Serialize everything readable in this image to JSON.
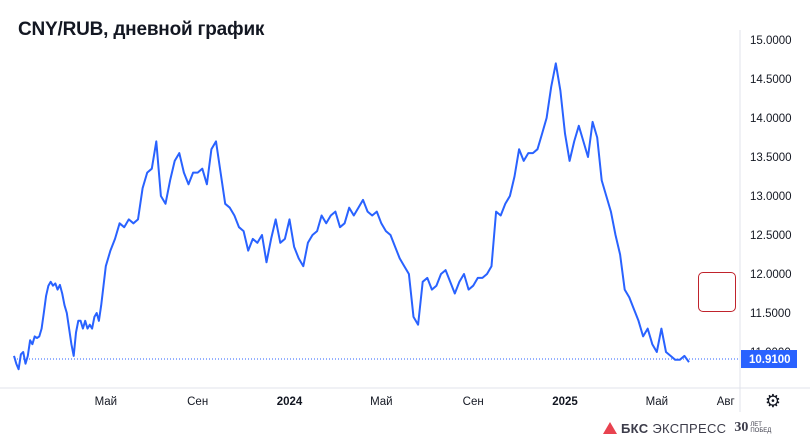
{
  "chart_data": {
    "type": "line",
    "title": "CNY/RUB, дневной график",
    "y_ticks": [
      "15.0000",
      "14.5000",
      "14.0000",
      "13.5000",
      "13.0000",
      "12.5000",
      "12.0000",
      "11.5000",
      "11.0000"
    ],
    "y_tick_values": [
      15.0,
      14.5,
      14.0,
      13.5,
      13.0,
      12.5,
      12.0,
      11.5,
      11.0
    ],
    "ylim": [
      10.75,
      15.0
    ],
    "x_ticks": [
      {
        "label": "Май",
        "bold": false
      },
      {
        "label": "Сен",
        "bold": false
      },
      {
        "label": "2024",
        "bold": true
      },
      {
        "label": "Май",
        "bold": false
      },
      {
        "label": "Сен",
        "bold": false
      },
      {
        "label": "2025",
        "bold": true
      },
      {
        "label": "Май",
        "bold": false
      },
      {
        "label": "Авг",
        "bold": false
      }
    ],
    "x_tick_positions": [
      4.0,
      8.0,
      12.0,
      16.0,
      20.0,
      24.0,
      28.0,
      31.0
    ],
    "xlim": [
      0.0,
      31.6
    ],
    "x_unit": "months from the start of January 2023 (Май 2023 = 4.0)",
    "last_value": "10.9100",
    "last_value_number": 10.91,
    "grid": false,
    "legend": "none",
    "series": [
      {
        "color": "#2962ff",
        "x": [
          0.0,
          0.1,
          0.2,
          0.3,
          0.4,
          0.5,
          0.6,
          0.7,
          0.8,
          0.9,
          1.0,
          1.1,
          1.2,
          1.3,
          1.4,
          1.5,
          1.6,
          1.7,
          1.8,
          1.9,
          2.0,
          2.1,
          2.2,
          2.3,
          2.4,
          2.5,
          2.6,
          2.7,
          2.8,
          2.9,
          3.0,
          3.1,
          3.2,
          3.3,
          3.4,
          3.5,
          3.6,
          3.7,
          3.8,
          3.9,
          4.0,
          4.2,
          4.4,
          4.6,
          4.8,
          5.0,
          5.2,
          5.4,
          5.6,
          5.8,
          6.0,
          6.2,
          6.4,
          6.6,
          6.8,
          7.0,
          7.2,
          7.4,
          7.6,
          7.8,
          8.0,
          8.2,
          8.4,
          8.6,
          8.8,
          9.0,
          9.2,
          9.4,
          9.6,
          9.8,
          10.0,
          10.2,
          10.4,
          10.6,
          10.8,
          11.0,
          11.2,
          11.4,
          11.6,
          11.8,
          12.0,
          12.2,
          12.4,
          12.6,
          12.8,
          13.0,
          13.2,
          13.4,
          13.6,
          13.8,
          14.0,
          14.2,
          14.4,
          14.6,
          14.8,
          15.0,
          15.2,
          15.4,
          15.6,
          15.8,
          16.0,
          16.2,
          16.4,
          16.6,
          16.8,
          17.0,
          17.2,
          17.4,
          17.6,
          17.8,
          18.0,
          18.2,
          18.4,
          18.6,
          18.8,
          19.0,
          19.2,
          19.4,
          19.6,
          19.8,
          20.0,
          20.2,
          20.4,
          20.6,
          20.8,
          21.0,
          21.2,
          21.4,
          21.6,
          21.8,
          22.0,
          22.2,
          22.4,
          22.6,
          22.8,
          23.0,
          23.2,
          23.4,
          23.6,
          23.8,
          24.0,
          24.2,
          24.4,
          24.6,
          24.8,
          25.0,
          25.2,
          25.4,
          25.6,
          25.8,
          26.0,
          26.2,
          26.4,
          26.6,
          26.8,
          27.0,
          27.2,
          27.4,
          27.6,
          27.8,
          28.0,
          28.2,
          28.4,
          28.6,
          28.8,
          29.0,
          29.2,
          29.4
        ],
        "values": [
          10.95,
          10.85,
          10.78,
          10.97,
          11.0,
          10.85,
          10.95,
          11.15,
          11.1,
          11.2,
          11.18,
          11.2,
          11.3,
          11.5,
          11.72,
          11.85,
          11.9,
          11.85,
          11.88,
          11.8,
          11.86,
          11.75,
          11.6,
          11.5,
          11.3,
          11.1,
          10.95,
          11.25,
          11.4,
          11.4,
          11.3,
          11.4,
          11.3,
          11.35,
          11.3,
          11.45,
          11.5,
          11.4,
          11.6,
          11.85,
          12.1,
          12.3,
          12.45,
          12.65,
          12.6,
          12.7,
          12.65,
          12.7,
          13.1,
          13.3,
          13.35,
          13.7,
          13.0,
          12.9,
          13.2,
          13.45,
          13.55,
          13.3,
          13.15,
          13.3,
          13.3,
          13.35,
          13.15,
          13.6,
          13.7,
          13.3,
          12.9,
          12.85,
          12.75,
          12.6,
          12.55,
          12.3,
          12.45,
          12.4,
          12.5,
          12.15,
          12.45,
          12.7,
          12.4,
          12.45,
          12.7,
          12.35,
          12.2,
          12.1,
          12.4,
          12.5,
          12.55,
          12.75,
          12.65,
          12.75,
          12.8,
          12.6,
          12.65,
          12.85,
          12.75,
          12.85,
          12.95,
          12.8,
          12.75,
          12.8,
          12.65,
          12.55,
          12.5,
          12.35,
          12.2,
          12.1,
          12.0,
          11.45,
          11.35,
          11.9,
          11.95,
          11.8,
          11.85,
          12.0,
          12.05,
          11.9,
          11.75,
          11.9,
          12.0,
          11.8,
          11.85,
          11.95,
          11.95,
          12.0,
          12.1,
          12.8,
          12.75,
          12.9,
          13.0,
          13.25,
          13.6,
          13.45,
          13.55,
          13.55,
          13.6,
          13.8,
          14.0,
          14.4,
          14.7,
          14.35,
          13.8,
          13.45,
          13.7,
          13.9,
          13.7,
          13.5,
          13.95,
          13.75,
          13.2,
          13.0,
          12.8,
          12.5,
          12.25,
          11.8,
          11.7,
          11.55,
          11.4,
          11.2,
          11.3,
          11.1,
          11.0,
          11.3,
          11.0,
          10.95,
          10.9,
          10.9,
          10.95,
          10.87
        ]
      }
    ]
  },
  "branding": {
    "name_bold": "БКС",
    "name_rest": "ЭКСПРЕСС",
    "anniversary": "30",
    "anniversary_sub": "ЛЕТ ПОБЕД"
  }
}
